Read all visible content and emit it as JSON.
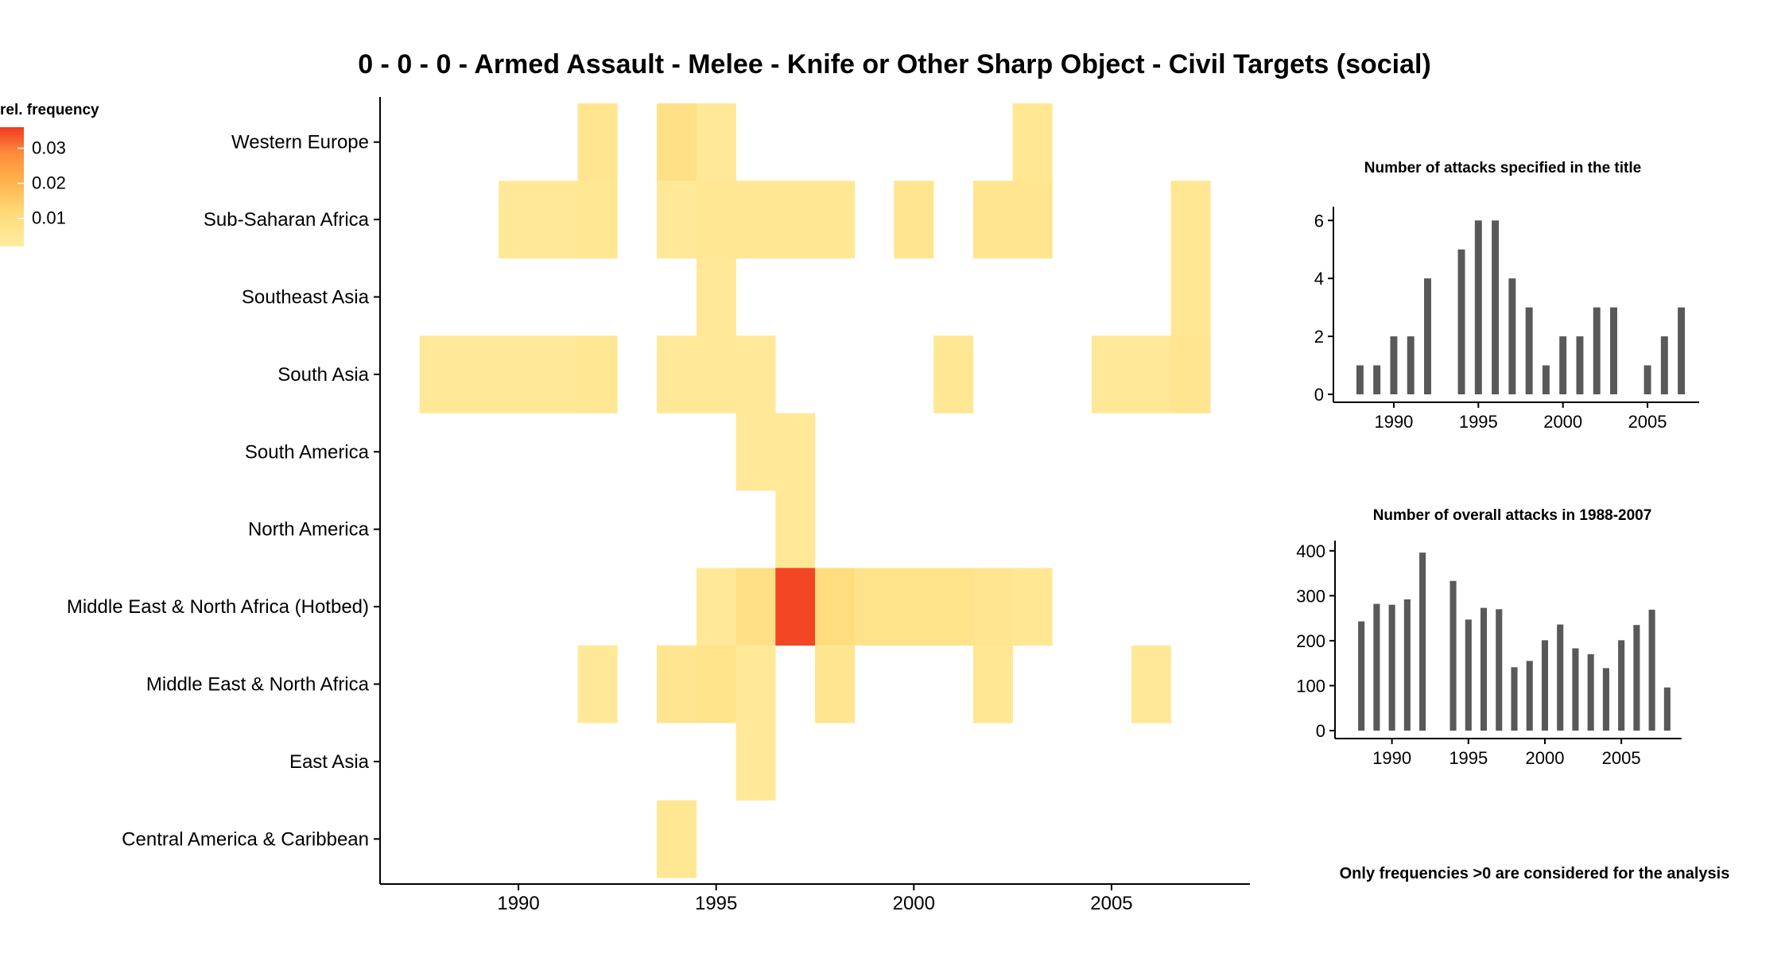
{
  "title": "0 - 0 - 0 - Armed Assault - Melee - Knife or Other Sharp Object - Civil Targets (social)",
  "legend": {
    "title": "rel. frequency",
    "ticks": [
      "0.03",
      "0.02",
      "0.01"
    ],
    "tick_values": [
      0.03,
      0.02,
      0.01
    ],
    "range": [
      0.002,
      0.036
    ],
    "colors": [
      "#ffeda0",
      "#fed976",
      "#feb24c",
      "#fd8d3c",
      "#f03b20"
    ]
  },
  "footnote": "Only frequencies >0 are considered for the analysis",
  "chart_data": [
    {
      "type": "heatmap",
      "title": "",
      "xlabel": "",
      "ylabel": "",
      "xlim": [
        1986.5,
        2008.5
      ],
      "x_ticks": [
        1990,
        1995,
        2000,
        2005
      ],
      "x_tick_labels": [
        "1990",
        "1995",
        "2000",
        "2005"
      ],
      "y_categories": [
        "Central America & Caribbean",
        "East Asia",
        "Middle East & North Africa",
        "Middle East & North Africa (Hotbed)",
        "North America",
        "South America",
        "South Asia",
        "Southeast Asia",
        "Sub-Saharan Africa",
        "Western Europe"
      ],
      "cells": [
        {
          "region": "Western Europe",
          "year": 1992,
          "value": 0.006
        },
        {
          "region": "Western Europe",
          "year": 1994,
          "value": 0.008
        },
        {
          "region": "Western Europe",
          "year": 1995,
          "value": 0.004
        },
        {
          "region": "Western Europe",
          "year": 2003,
          "value": 0.005
        },
        {
          "region": "Sub-Saharan Africa",
          "year": 1990,
          "value": 0.004
        },
        {
          "region": "Sub-Saharan Africa",
          "year": 1991,
          "value": 0.004
        },
        {
          "region": "Sub-Saharan Africa",
          "year": 1992,
          "value": 0.005
        },
        {
          "region": "Sub-Saharan Africa",
          "year": 1994,
          "value": 0.004
        },
        {
          "region": "Sub-Saharan Africa",
          "year": 1995,
          "value": 0.005
        },
        {
          "region": "Sub-Saharan Africa",
          "year": 1996,
          "value": 0.005
        },
        {
          "region": "Sub-Saharan Africa",
          "year": 1997,
          "value": 0.005
        },
        {
          "region": "Sub-Saharan Africa",
          "year": 1998,
          "value": 0.005
        },
        {
          "region": "Sub-Saharan Africa",
          "year": 2000,
          "value": 0.006
        },
        {
          "region": "Sub-Saharan Africa",
          "year": 2002,
          "value": 0.006
        },
        {
          "region": "Sub-Saharan Africa",
          "year": 2003,
          "value": 0.006
        },
        {
          "region": "Sub-Saharan Africa",
          "year": 2007,
          "value": 0.005
        },
        {
          "region": "Southeast Asia",
          "year": 1995,
          "value": 0.004
        },
        {
          "region": "Southeast Asia",
          "year": 2007,
          "value": 0.005
        },
        {
          "region": "South Asia",
          "year": 1988,
          "value": 0.004
        },
        {
          "region": "South Asia",
          "year": 1989,
          "value": 0.004
        },
        {
          "region": "South Asia",
          "year": 1990,
          "value": 0.004
        },
        {
          "region": "South Asia",
          "year": 1991,
          "value": 0.004
        },
        {
          "region": "South Asia",
          "year": 1992,
          "value": 0.005
        },
        {
          "region": "South Asia",
          "year": 1994,
          "value": 0.004
        },
        {
          "region": "South Asia",
          "year": 1995,
          "value": 0.004
        },
        {
          "region": "South Asia",
          "year": 1996,
          "value": 0.004
        },
        {
          "region": "South Asia",
          "year": 2001,
          "value": 0.005
        },
        {
          "region": "South Asia",
          "year": 2005,
          "value": 0.004
        },
        {
          "region": "South Asia",
          "year": 2006,
          "value": 0.004
        },
        {
          "region": "South Asia",
          "year": 2007,
          "value": 0.006
        },
        {
          "region": "South America",
          "year": 1996,
          "value": 0.004
        },
        {
          "region": "South America",
          "year": 1997,
          "value": 0.004
        },
        {
          "region": "North America",
          "year": 1997,
          "value": 0.004
        },
        {
          "region": "Middle East & North Africa (Hotbed)",
          "year": 1995,
          "value": 0.004
        },
        {
          "region": "Middle East & North Africa (Hotbed)",
          "year": 1996,
          "value": 0.008
        },
        {
          "region": "Middle East & North Africa (Hotbed)",
          "year": 1997,
          "value": 0.035
        },
        {
          "region": "Middle East & North Africa (Hotbed)",
          "year": 1998,
          "value": 0.01
        },
        {
          "region": "Middle East & North Africa (Hotbed)",
          "year": 1999,
          "value": 0.007
        },
        {
          "region": "Middle East & North Africa (Hotbed)",
          "year": 2000,
          "value": 0.007
        },
        {
          "region": "Middle East & North Africa (Hotbed)",
          "year": 2001,
          "value": 0.007
        },
        {
          "region": "Middle East & North Africa (Hotbed)",
          "year": 2002,
          "value": 0.006
        },
        {
          "region": "Middle East & North Africa (Hotbed)",
          "year": 2003,
          "value": 0.005
        },
        {
          "region": "Middle East & North Africa",
          "year": 1992,
          "value": 0.004
        },
        {
          "region": "Middle East & North Africa",
          "year": 1994,
          "value": 0.006
        },
        {
          "region": "Middle East & North Africa",
          "year": 1995,
          "value": 0.007
        },
        {
          "region": "Middle East & North Africa",
          "year": 1996,
          "value": 0.004
        },
        {
          "region": "Middle East & North Africa",
          "year": 1998,
          "value": 0.006
        },
        {
          "region": "Middle East & North Africa",
          "year": 2002,
          "value": 0.005
        },
        {
          "region": "Middle East & North Africa",
          "year": 2006,
          "value": 0.004
        },
        {
          "region": "East Asia",
          "year": 1996,
          "value": 0.004
        },
        {
          "region": "Central America & Caribbean",
          "year": 1994,
          "value": 0.005
        }
      ]
    },
    {
      "type": "bar",
      "title": "Number of attacks specified in the title",
      "xlabel": "",
      "ylabel": "",
      "xlim": [
        1986.9,
        2008.1
      ],
      "ylim": [
        0,
        6.2
      ],
      "x_ticks": [
        1990,
        1995,
        2000,
        2005
      ],
      "y_ticks": [
        0,
        2,
        4,
        6
      ],
      "x": [
        1988,
        1989,
        1990,
        1991,
        1992,
        1994,
        1995,
        1996,
        1997,
        1998,
        1999,
        2000,
        2001,
        2002,
        2003,
        2005,
        2006,
        2007
      ],
      "values": [
        1,
        1,
        2,
        2,
        4,
        5,
        6,
        6,
        4,
        3,
        1,
        2,
        2,
        3,
        3,
        1,
        2,
        3
      ]
    },
    {
      "type": "bar",
      "title": "Number of overall attacks in 1988-2007",
      "xlabel": "",
      "ylabel": "",
      "xlim": [
        1986.9,
        2009.1
      ],
      "ylim": [
        0,
        405
      ],
      "x_ticks": [
        1990,
        1995,
        2000,
        2005
      ],
      "y_ticks": [
        0,
        100,
        200,
        300,
        400
      ],
      "x": [
        1988,
        1989,
        1990,
        1991,
        1992,
        1994,
        1995,
        1996,
        1997,
        1998,
        1999,
        2000,
        2001,
        2002,
        2003,
        2004,
        2005,
        2006,
        2007,
        2008
      ],
      "values": [
        243,
        282,
        280,
        292,
        396,
        333,
        247,
        273,
        270,
        141,
        155,
        201,
        236,
        183,
        170,
        139,
        201,
        235,
        269,
        96
      ]
    }
  ]
}
